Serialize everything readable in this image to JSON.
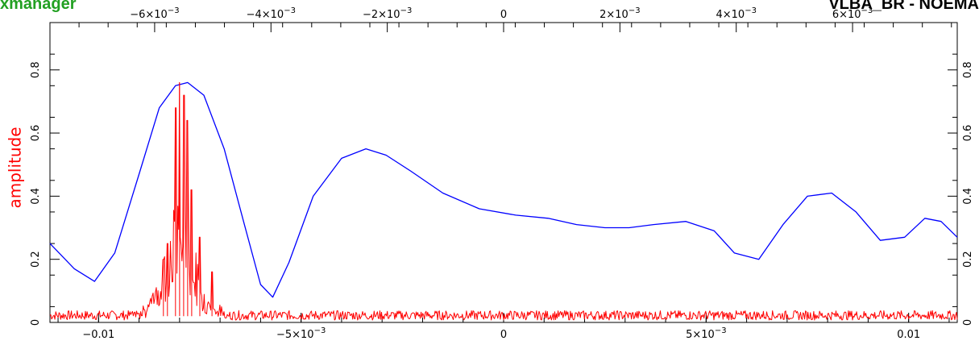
{
  "app_title": "xmanager",
  "corner_title": "VLBA_BR - NOEMA",
  "colors": {
    "app_title": "#22a022",
    "amplitude": "#ff0000",
    "delay_spectrum": "#0000ff"
  },
  "chart_data": {
    "type": "line",
    "ylabel": "amplitude",
    "ylim": [
      0,
      0.95
    ],
    "bottom_axis": {
      "range": [
        -0.0112,
        0.0112
      ],
      "ticks": [
        {
          "value": -0.01,
          "label": "−0.01"
        },
        {
          "value": -0.005,
          "label": "−5×10−3"
        },
        {
          "value": 0,
          "label": "0"
        },
        {
          "value": 0.005,
          "label": "5×10−3"
        },
        {
          "value": 0.01,
          "label": "0.01"
        }
      ]
    },
    "top_axis": {
      "range": [
        -0.0078,
        0.0078
      ],
      "ticks": [
        {
          "value": -0.006,
          "label": "−6×10−3"
        },
        {
          "value": -0.004,
          "label": "−4×10−3"
        },
        {
          "value": -0.002,
          "label": "−2×10−3"
        },
        {
          "value": 0,
          "label": "0"
        },
        {
          "value": 0.002,
          "label": "2×10−3"
        },
        {
          "value": 0.004,
          "label": "4×10−3"
        },
        {
          "value": 0.006,
          "label": "6×10−3"
        }
      ]
    },
    "y_ticks": [
      {
        "value": 0,
        "label": "0"
      },
      {
        "value": 0.2,
        "label": "0.2"
      },
      {
        "value": 0.4,
        "label": "0.4"
      },
      {
        "value": 0.6,
        "label": "0.6"
      },
      {
        "value": 0.8,
        "label": "0.8"
      }
    ],
    "series": [
      {
        "color": "#0000ff",
        "axis": "bottom",
        "x": [
          -0.0112,
          -0.0106,
          -0.0101,
          -0.0096,
          -0.009,
          -0.0085,
          -0.0081,
          -0.0078,
          -0.0074,
          -0.0069,
          -0.0064,
          -0.006,
          -0.0057,
          -0.0053,
          -0.0047,
          -0.004,
          -0.0034,
          -0.0029,
          -0.0023,
          -0.0015,
          -0.0006,
          0.0003,
          0.0011,
          0.0018,
          0.0025,
          0.0031,
          0.0037,
          0.0045,
          0.0052,
          0.0057,
          0.0063,
          0.0069,
          0.0075,
          0.0081,
          0.0087,
          0.0093,
          0.0099,
          0.0104,
          0.0108,
          0.0112
        ],
        "y": [
          0.25,
          0.17,
          0.13,
          0.22,
          0.47,
          0.68,
          0.75,
          0.76,
          0.72,
          0.55,
          0.31,
          0.12,
          0.08,
          0.19,
          0.4,
          0.52,
          0.55,
          0.53,
          0.48,
          0.41,
          0.36,
          0.34,
          0.33,
          0.31,
          0.3,
          0.3,
          0.31,
          0.32,
          0.29,
          0.22,
          0.2,
          0.31,
          0.4,
          0.41,
          0.35,
          0.26,
          0.27,
          0.33,
          0.32,
          0.27
        ]
      },
      {
        "color": "#ff0000",
        "axis": "bottom",
        "noise_level": 0.025,
        "peak_x": -0.008,
        "peak_y": 0.76,
        "secondary_peaks": [
          {
            "x": -0.0081,
            "y": 0.68
          },
          {
            "x": -0.0079,
            "y": 0.72
          },
          {
            "x": -0.0078,
            "y": 0.64
          },
          {
            "x": -0.0077,
            "y": 0.42
          },
          {
            "x": -0.0083,
            "y": 0.25
          },
          {
            "x": -0.0075,
            "y": 0.27
          },
          {
            "x": -0.0084,
            "y": 0.2
          },
          {
            "x": -0.0072,
            "y": 0.16
          }
        ]
      }
    ]
  }
}
